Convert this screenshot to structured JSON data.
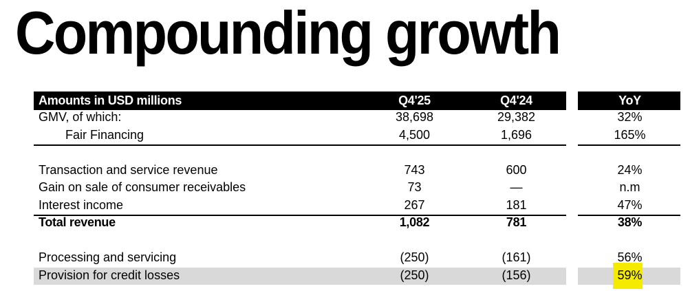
{
  "title": "Compounding growth",
  "table": {
    "headers": {
      "label": "Amounts in USD millions",
      "q4_25": "Q4'25",
      "q4_24": "Q4'24",
      "yoy": "YoY"
    },
    "rows": [
      {
        "label": "GMV, of which:",
        "q4_25": "38,698",
        "q4_24": "29,382",
        "yoy": "32%"
      },
      {
        "label": "Fair Financing",
        "q4_25": "4,500",
        "q4_24": "1,696",
        "yoy": "165%"
      },
      {
        "label": "Transaction and service revenue",
        "q4_25": "743",
        "q4_24": "600",
        "yoy": "24%"
      },
      {
        "label": "Gain on sale of consumer receivables",
        "q4_25": "73",
        "q4_24": "—",
        "yoy": "n.m"
      },
      {
        "label": "Interest income",
        "q4_25": "267",
        "q4_24": "181",
        "yoy": "47%"
      },
      {
        "label": "Total revenue",
        "q4_25": "1,082",
        "q4_24": "781",
        "yoy": "38%"
      },
      {
        "label": "Processing and servicing",
        "q4_25": "(250)",
        "q4_24": "(161)",
        "yoy": "56%"
      },
      {
        "label": "Provision for credit losses",
        "q4_25": "(250)",
        "q4_24": "(156)",
        "yoy": "59%"
      }
    ]
  },
  "colors": {
    "header_bg": "#000000",
    "shaded_row": "#d9d9d9",
    "highlight": "#f5eb00"
  }
}
